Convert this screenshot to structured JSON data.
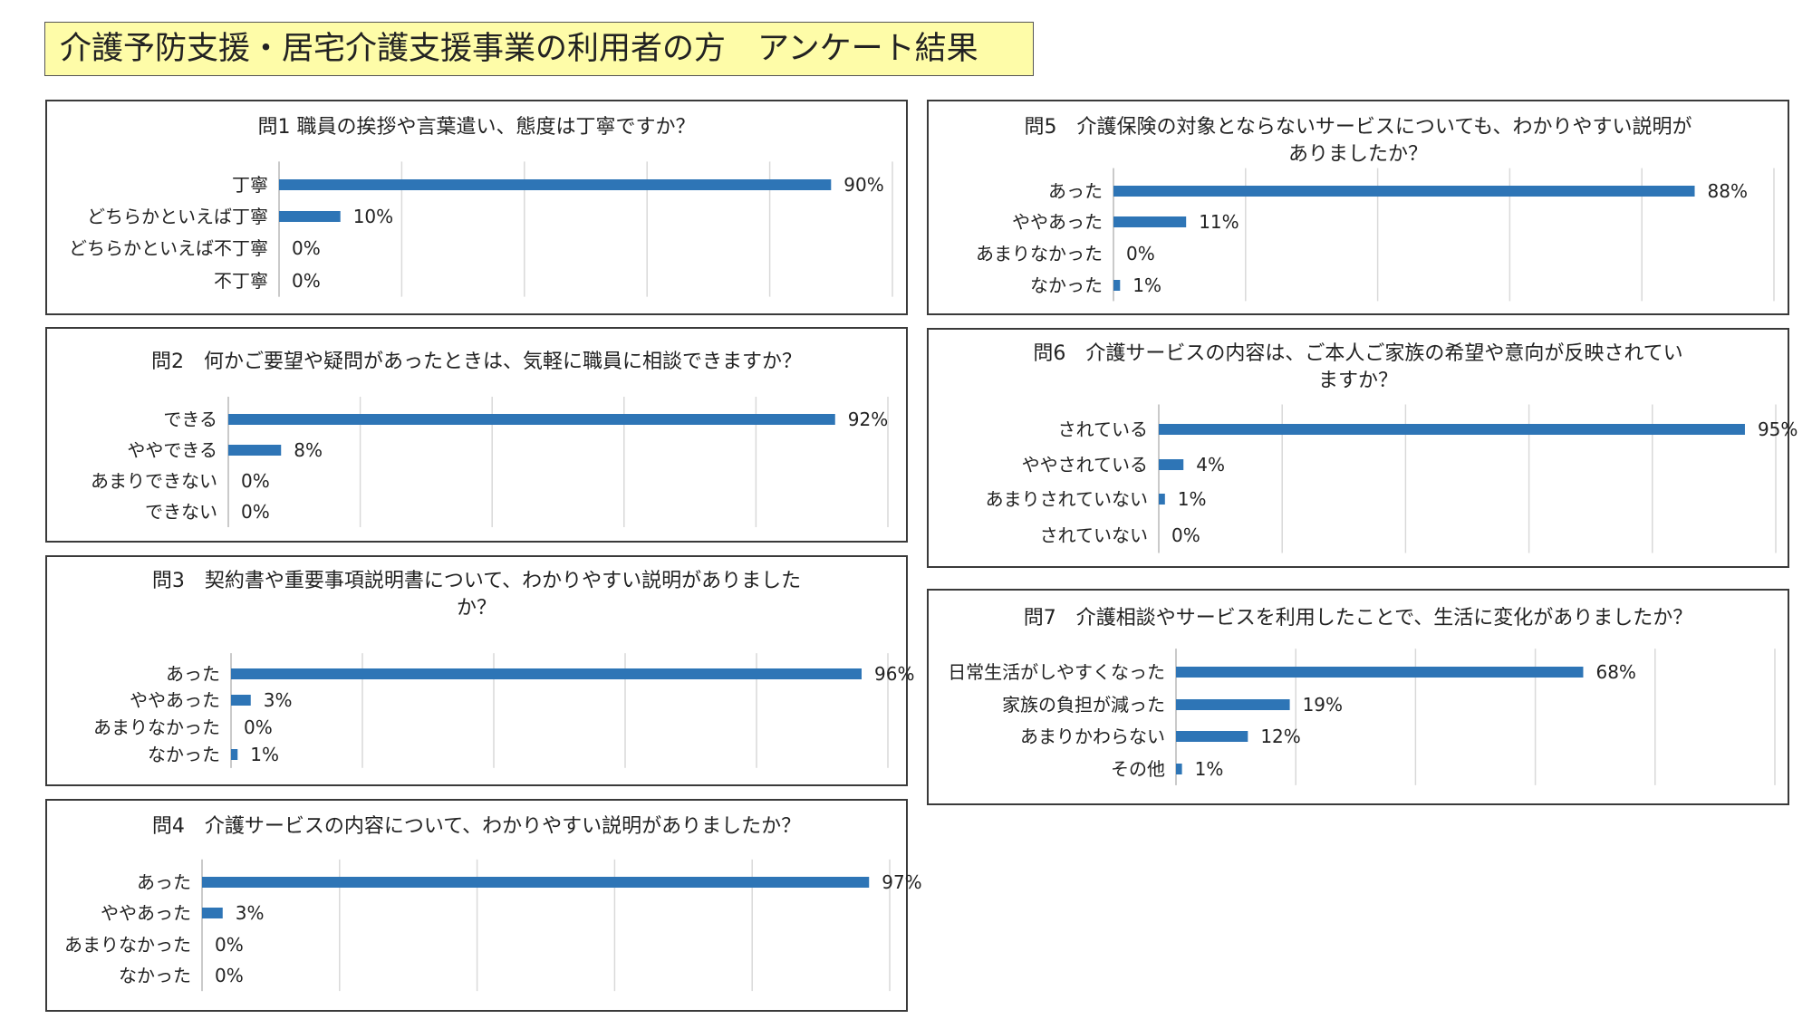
{
  "title": "介護予防支援・居宅介護支援事業の利用者の方　アンケート結果",
  "colors": {
    "bar": "#2e75b6",
    "grid": "#d9d9d9",
    "title_bg": "#fefca8"
  },
  "chart_data": [
    {
      "id": "q1",
      "type": "bar",
      "orientation": "horizontal",
      "title_lines": [
        "問1 職員の挨拶や言葉遣い、態度は丁寧ですか？"
      ],
      "categories": [
        "丁寧",
        "どちらかといえば丁寧",
        "どちらかといえば不丁寧",
        "不丁寧"
      ],
      "values": [
        90,
        10,
        0,
        0
      ],
      "value_labels": [
        "90%",
        "10%",
        "0%",
        "0%"
      ],
      "xlim": [
        0,
        100
      ]
    },
    {
      "id": "q2",
      "type": "bar",
      "orientation": "horizontal",
      "title_lines": [
        "問2　何かご要望や疑問があったときは、気軽に職員に相談できますか？"
      ],
      "categories": [
        "できる",
        "ややできる",
        "あまりできない",
        "できない"
      ],
      "values": [
        92,
        8,
        0,
        0
      ],
      "value_labels": [
        "92%",
        "8%",
        "0%",
        "0%"
      ],
      "xlim": [
        0,
        100
      ]
    },
    {
      "id": "q3",
      "type": "bar",
      "orientation": "horizontal",
      "title_lines": [
        "問3　契約書や重要事項説明書について、わかりやすい説明がありました",
        "か？"
      ],
      "categories": [
        "あった",
        "ややあった",
        "あまりなかった",
        "なかった"
      ],
      "values": [
        96,
        3,
        0,
        1
      ],
      "value_labels": [
        "96%",
        "3%",
        "0%",
        "1%"
      ],
      "xlim": [
        0,
        100
      ]
    },
    {
      "id": "q4",
      "type": "bar",
      "orientation": "horizontal",
      "title_lines": [
        "問4　介護サービスの内容について、わかりやすい説明がありましたか？"
      ],
      "categories": [
        "あった",
        "ややあった",
        "あまりなかった",
        "なかった"
      ],
      "values": [
        97,
        3,
        0,
        0
      ],
      "value_labels": [
        "97%",
        "3%",
        "0%",
        "0%"
      ],
      "xlim": [
        0,
        100
      ]
    },
    {
      "id": "q5",
      "type": "bar",
      "orientation": "horizontal",
      "title_lines": [
        "問5　介護保険の対象とならないサービスについても、わかりやすい説明が",
        "ありましたか？"
      ],
      "categories": [
        "あった",
        "ややあった",
        "あまりなかった",
        "なかった"
      ],
      "values": [
        88,
        11,
        0,
        1
      ],
      "value_labels": [
        "88%",
        "11%",
        "0%",
        "1%"
      ],
      "xlim": [
        0,
        100
      ]
    },
    {
      "id": "q6",
      "type": "bar",
      "orientation": "horizontal",
      "title_lines": [
        "問6　介護サービスの内容は、ご本人ご家族の希望や意向が反映されてい",
        "ますか？"
      ],
      "categories": [
        "されている",
        "ややされている",
        "あまりされていない",
        "されていない"
      ],
      "values": [
        95,
        4,
        1,
        0
      ],
      "value_labels": [
        "95%",
        "4%",
        "1%",
        "0%"
      ],
      "xlim": [
        0,
        100
      ]
    },
    {
      "id": "q7",
      "type": "bar",
      "orientation": "horizontal",
      "title_lines": [
        "問7　介護相談やサービスを利用したことで、生活に変化がありましたか？"
      ],
      "categories": [
        "日常生活がしやすくなった",
        "家族の負担が減った",
        "あまりかわらない",
        "その他"
      ],
      "values": [
        68,
        19,
        12,
        1
      ],
      "value_labels": [
        "68%",
        "19%",
        "12%",
        "1%"
      ],
      "xlim": [
        0,
        100
      ]
    }
  ]
}
